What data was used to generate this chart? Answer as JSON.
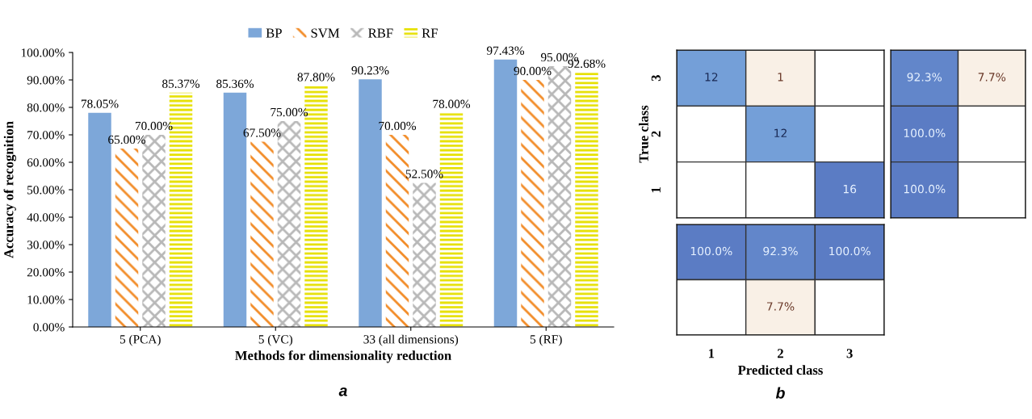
{
  "chart_data": [
    {
      "type": "bar",
      "categories": [
        "5 (PCA)",
        "5 (VC)",
        "33 (all dimensions)",
        "5 (RF)"
      ],
      "xlabel": "Methods for dimensionality reduction",
      "ylabel": "Accuracy of recognition",
      "ylim": [
        0,
        100
      ],
      "yticks": [
        {
          "value": 0,
          "label": "0.00%"
        },
        {
          "value": 10,
          "label": "10.00%"
        },
        {
          "value": 20,
          "label": "20.00%"
        },
        {
          "value": 30,
          "label": "30.00%"
        },
        {
          "value": 40,
          "label": "40.00%"
        },
        {
          "value": 50,
          "label": "50.00%"
        },
        {
          "value": 60,
          "label": "60.00%"
        },
        {
          "value": 70,
          "label": "70.00%"
        },
        {
          "value": 80,
          "label": "80.00%"
        },
        {
          "value": 90,
          "label": "90.00%"
        },
        {
          "value": 100,
          "label": "100.00%"
        }
      ],
      "legend": "top",
      "grid": false,
      "annotations": [
        "a"
      ],
      "series": [
        {
          "name": "BP",
          "color": "#7da7d9",
          "values": [
            78.05,
            85.36,
            90.23,
            97.43
          ],
          "value_labels": [
            "78.05%",
            "85.36%",
            "90.23%",
            "97.43%"
          ]
        },
        {
          "name": "SVM",
          "color": "#f28c28",
          "values": [
            65.0,
            67.5,
            70.0,
            90.0
          ],
          "value_labels": [
            "65.00%",
            "67.50%",
            "70.00%",
            "90.00%"
          ]
        },
        {
          "name": "RBF",
          "color": "#b8b8b8",
          "values": [
            70.0,
            75.0,
            52.5,
            95.0
          ],
          "value_labels": [
            "70.00%",
            "75.00%",
            "52.50%",
            "95.00%"
          ]
        },
        {
          "name": "RF",
          "color": "#e6e000",
          "values": [
            85.37,
            87.8,
            78.0,
            92.68
          ],
          "value_labels": [
            "85.37%",
            "87.80%",
            "78.00%",
            "92.68%"
          ]
        }
      ]
    },
    {
      "type": "heatmap",
      "categories": [
        "1",
        "2",
        "3"
      ],
      "y_categories": [
        "3",
        "2",
        "1"
      ],
      "ylabel": "True class",
      "tick_labels": "y",
      "cells": [
        [
          12,
          1,
          null
        ],
        [
          null,
          12,
          null
        ],
        [
          null,
          null,
          16
        ]
      ],
      "cell_labels": [
        [
          "12",
          "1",
          null
        ],
        [
          null,
          "12",
          null
        ],
        [
          null,
          null,
          "16"
        ]
      ]
    },
    {
      "type": "heatmap",
      "categories": [
        null,
        null
      ],
      "y_categories": [
        null,
        null,
        null
      ],
      "tick_labels": false,
      "cells": [
        [
          92.3,
          7.7
        ],
        [
          100.0,
          null
        ],
        [
          100.0,
          null
        ]
      ],
      "cell_labels": [
        [
          "92.3%",
          "7.7%"
        ],
        [
          "100.0%",
          null
        ],
        [
          "100.0%",
          null
        ]
      ]
    },
    {
      "type": "heatmap",
      "categories": [
        "1",
        "2",
        "3"
      ],
      "y_categories": [
        null,
        null
      ],
      "xlabel": "Predicted class",
      "tick_labels": "x",
      "annotations": [
        "b"
      ],
      "cells": [
        [
          100.0,
          92.3,
          100.0
        ],
        [
          null,
          7.7,
          null
        ]
      ],
      "cell_labels": [
        [
          "100.0%",
          "92.3%",
          "100.0%"
        ],
        [
          null,
          "7.7%",
          null
        ]
      ]
    }
  ]
}
